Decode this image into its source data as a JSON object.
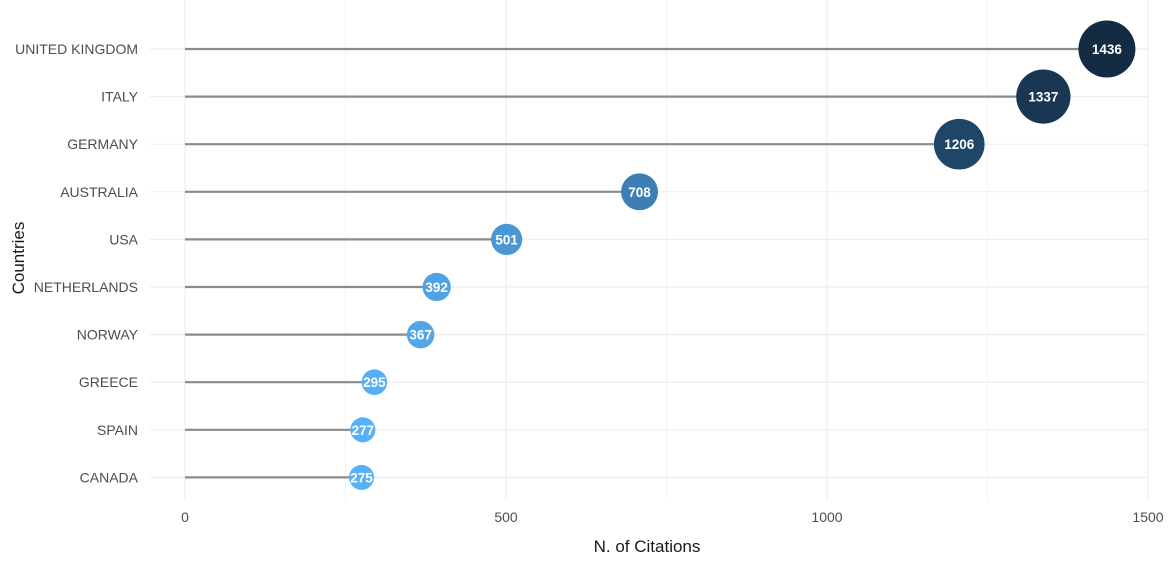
{
  "chart_data": {
    "type": "scatter",
    "subtype": "lollipop",
    "title": "",
    "xlabel": "N. of Citations",
    "ylabel": "Countries",
    "xlim": [
      0,
      1500
    ],
    "x_ticks": [
      0,
      500,
      1000,
      1500
    ],
    "grid": true,
    "legend": "none",
    "categories": [
      "UNITED KINGDOM",
      "ITALY",
      "GERMANY",
      "AUSTRALIA",
      "USA",
      "NETHERLANDS",
      "NORWAY",
      "GREECE",
      "SPAIN",
      "CANADA"
    ],
    "values": [
      1436,
      1337,
      1206,
      708,
      501,
      392,
      367,
      295,
      277,
      275
    ],
    "color_scale": {
      "low": "#56B1F7",
      "high": "#132B43"
    },
    "marker_size": "proportional to value"
  }
}
